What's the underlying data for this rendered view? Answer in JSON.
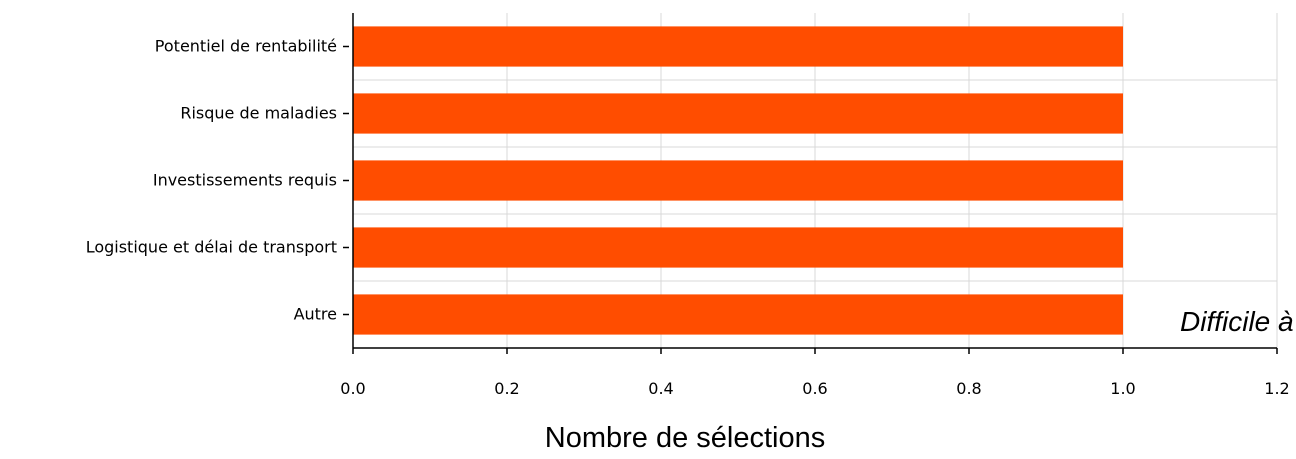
{
  "chart_data": {
    "type": "bar",
    "orientation": "horizontal",
    "categories": [
      "Potentiel de rentabilité",
      "Risque de maladies",
      "Investissements requis",
      "Logistique et délai de transport",
      "Autre"
    ],
    "values": [
      1,
      1,
      1,
      1,
      1
    ],
    "xlabel": "Nombre de sélections",
    "ylabel": "",
    "xlim": [
      0,
      1.2
    ],
    "xticks": [
      "0.0",
      "0.2",
      "0.4",
      "0.6",
      "0.8",
      "1.0",
      "1.2"
    ],
    "grid": true,
    "bar_color": "#ff4d00",
    "annotation": "Difficile à"
  }
}
